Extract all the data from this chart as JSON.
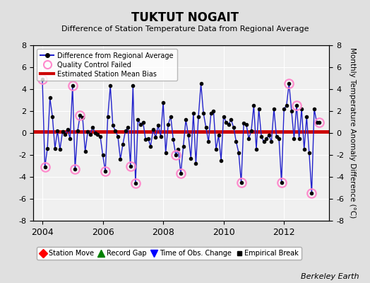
{
  "title": "TUKTUT NOGAIT",
  "subtitle": "Difference of Station Temperature Data from Regional Average",
  "ylabel_right": "Monthly Temperature Anomaly Difference (°C)",
  "xlim": [
    2003.7,
    2013.5
  ],
  "ylim": [
    -8,
    8
  ],
  "yticks": [
    -8,
    -6,
    -4,
    -2,
    0,
    2,
    4,
    6,
    8
  ],
  "xticks": [
    2004,
    2006,
    2008,
    2010,
    2012
  ],
  "mean_bias": 0.15,
  "fig_bg_color": "#e0e0e0",
  "plot_bg_color": "#f0f0f0",
  "line_color": "#2222cc",
  "bias_color": "#cc0000",
  "qc_color": "#ff88cc",
  "berkeley_earth_text": "Berkeley Earth",
  "time_series": [
    [
      2004.0,
      4.9
    ],
    [
      2004.083,
      -3.1
    ],
    [
      2004.167,
      -1.4
    ],
    [
      2004.25,
      3.2
    ],
    [
      2004.333,
      1.5
    ],
    [
      2004.417,
      -1.4
    ],
    [
      2004.5,
      0.2
    ],
    [
      2004.583,
      -1.5
    ],
    [
      2004.667,
      0.1
    ],
    [
      2004.75,
      -0.1
    ],
    [
      2004.833,
      0.3
    ],
    [
      2004.917,
      -0.5
    ],
    [
      2005.0,
      4.3
    ],
    [
      2005.083,
      -3.3
    ],
    [
      2005.167,
      0.2
    ],
    [
      2005.25,
      1.6
    ],
    [
      2005.333,
      1.4
    ],
    [
      2005.417,
      -1.7
    ],
    [
      2005.5,
      0.1
    ],
    [
      2005.583,
      -0.1
    ],
    [
      2005.667,
      0.5
    ],
    [
      2005.75,
      0.0
    ],
    [
      2005.833,
      -0.1
    ],
    [
      2005.917,
      -0.3
    ],
    [
      2006.0,
      -2.0
    ],
    [
      2006.083,
      -3.5
    ],
    [
      2006.167,
      1.5
    ],
    [
      2006.25,
      4.3
    ],
    [
      2006.333,
      0.7
    ],
    [
      2006.417,
      0.2
    ],
    [
      2006.5,
      -0.3
    ],
    [
      2006.583,
      -2.4
    ],
    [
      2006.667,
      -1.0
    ],
    [
      2006.75,
      0.2
    ],
    [
      2006.833,
      0.5
    ],
    [
      2006.917,
      -3.0
    ],
    [
      2007.0,
      4.3
    ],
    [
      2007.083,
      -4.6
    ],
    [
      2007.167,
      1.2
    ],
    [
      2007.25,
      0.8
    ],
    [
      2007.333,
      1.0
    ],
    [
      2007.417,
      -0.6
    ],
    [
      2007.5,
      -0.5
    ],
    [
      2007.583,
      -1.2
    ],
    [
      2007.667,
      0.3
    ],
    [
      2007.75,
      -0.4
    ],
    [
      2007.833,
      0.7
    ],
    [
      2007.917,
      -0.3
    ],
    [
      2008.0,
      2.8
    ],
    [
      2008.083,
      -1.8
    ],
    [
      2008.167,
      0.8
    ],
    [
      2008.25,
      1.5
    ],
    [
      2008.333,
      -0.6
    ],
    [
      2008.417,
      -2.0
    ],
    [
      2008.5,
      -1.5
    ],
    [
      2008.583,
      -3.7
    ],
    [
      2008.667,
      -1.2
    ],
    [
      2008.75,
      1.2
    ],
    [
      2008.833,
      -0.2
    ],
    [
      2008.917,
      -2.3
    ],
    [
      2009.0,
      1.8
    ],
    [
      2009.083,
      -2.8
    ],
    [
      2009.167,
      1.5
    ],
    [
      2009.25,
      4.5
    ],
    [
      2009.333,
      1.8
    ],
    [
      2009.417,
      0.5
    ],
    [
      2009.5,
      -0.8
    ],
    [
      2009.583,
      1.8
    ],
    [
      2009.667,
      2.0
    ],
    [
      2009.75,
      -1.5
    ],
    [
      2009.833,
      -0.2
    ],
    [
      2009.917,
      -2.5
    ],
    [
      2010.0,
      1.5
    ],
    [
      2010.083,
      1.0
    ],
    [
      2010.167,
      0.8
    ],
    [
      2010.25,
      1.2
    ],
    [
      2010.333,
      0.5
    ],
    [
      2010.417,
      -0.8
    ],
    [
      2010.5,
      -1.8
    ],
    [
      2010.583,
      -4.5
    ],
    [
      2010.667,
      0.9
    ],
    [
      2010.75,
      0.8
    ],
    [
      2010.833,
      -0.5
    ],
    [
      2010.917,
      0.2
    ],
    [
      2011.0,
      2.5
    ],
    [
      2011.083,
      -1.5
    ],
    [
      2011.167,
      2.2
    ],
    [
      2011.25,
      -0.3
    ],
    [
      2011.333,
      -0.8
    ],
    [
      2011.417,
      -0.5
    ],
    [
      2011.5,
      -0.2
    ],
    [
      2011.583,
      -0.8
    ],
    [
      2011.667,
      2.2
    ],
    [
      2011.75,
      -0.3
    ],
    [
      2011.833,
      -0.5
    ],
    [
      2011.917,
      -4.5
    ],
    [
      2012.0,
      2.2
    ],
    [
      2012.083,
      2.5
    ],
    [
      2012.167,
      4.5
    ],
    [
      2012.25,
      2.0
    ],
    [
      2012.333,
      -0.5
    ],
    [
      2012.417,
      2.5
    ],
    [
      2012.5,
      -0.5
    ],
    [
      2012.583,
      2.2
    ],
    [
      2012.667,
      -1.5
    ],
    [
      2012.75,
      1.5
    ],
    [
      2012.833,
      -1.8
    ],
    [
      2012.917,
      -5.5
    ],
    [
      2013.0,
      2.2
    ],
    [
      2013.083,
      1.0
    ],
    [
      2013.167,
      1.0
    ]
  ],
  "qc_failed_points": [
    [
      2004.0,
      4.9
    ],
    [
      2004.083,
      -3.1
    ],
    [
      2005.0,
      4.3
    ],
    [
      2005.083,
      -3.3
    ],
    [
      2005.25,
      1.6
    ],
    [
      2006.083,
      -3.5
    ],
    [
      2006.917,
      -3.0
    ],
    [
      2007.083,
      -4.6
    ],
    [
      2008.417,
      -2.0
    ],
    [
      2008.583,
      -3.7
    ],
    [
      2010.583,
      -4.5
    ],
    [
      2011.917,
      -4.5
    ],
    [
      2012.167,
      4.5
    ],
    [
      2012.417,
      2.5
    ],
    [
      2012.917,
      -5.5
    ],
    [
      2013.167,
      1.0
    ]
  ]
}
